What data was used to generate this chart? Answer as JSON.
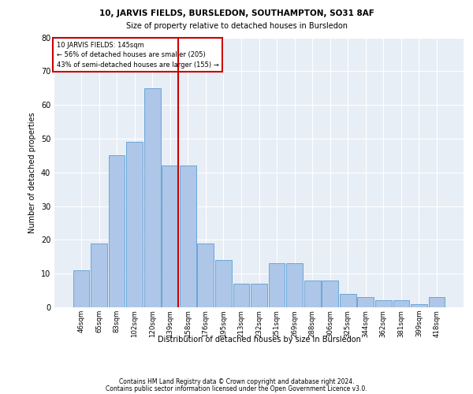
{
  "title1": "10, JARVIS FIELDS, BURSLEDON, SOUTHAMPTON, SO31 8AF",
  "title2": "Size of property relative to detached houses in Bursledon",
  "xlabel": "Distribution of detached houses by size in Bursledon",
  "ylabel": "Number of detached properties",
  "footnote1": "Contains HM Land Registry data © Crown copyright and database right 2024.",
  "footnote2": "Contains public sector information licensed under the Open Government Licence v3.0.",
  "annotation_line1": "10 JARVIS FIELDS: 145sqm",
  "annotation_line2": "← 56% of detached houses are smaller (205)",
  "annotation_line3": "43% of semi-detached houses are larger (155) →",
  "bin_labels": [
    "46sqm",
    "65sqm",
    "83sqm",
    "102sqm",
    "120sqm",
    "139sqm",
    "158sqm",
    "176sqm",
    "195sqm",
    "213sqm",
    "232sqm",
    "251sqm",
    "269sqm",
    "288sqm",
    "306sqm",
    "325sqm",
    "344sqm",
    "362sqm",
    "381sqm",
    "399sqm",
    "418sqm"
  ],
  "bar_heights": [
    11,
    19,
    45,
    49,
    65,
    42,
    42,
    19,
    14,
    7,
    7,
    13,
    13,
    8,
    8,
    4,
    3,
    2,
    2,
    1,
    3
  ],
  "bar_color": "#aec6e8",
  "bar_edge_color": "#5a9fd4",
  "vline_color": "#cc0000",
  "bg_color": "#e8eef5",
  "grid_color": "#ffffff",
  "annotation_box_edge": "#cc0000",
  "ylim": [
    0,
    80
  ],
  "yticks": [
    0,
    10,
    20,
    30,
    40,
    50,
    60,
    70,
    80
  ],
  "vline_bin_index": 5
}
